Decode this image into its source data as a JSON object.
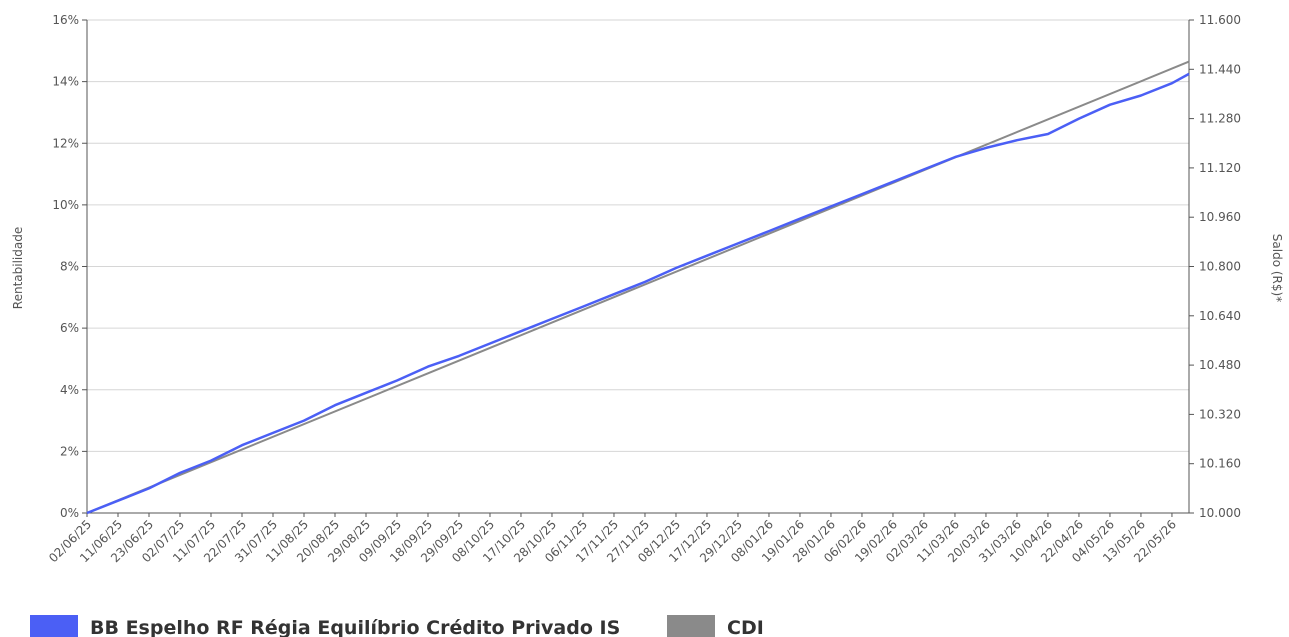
{
  "chart_data": {
    "type": "line",
    "y_left_label": "Rentabilidade",
    "y_right_label": "Saldo (R$)*",
    "y_left_ticks": [
      "0%",
      "2%",
      "4%",
      "6%",
      "8%",
      "10%",
      "12%",
      "14%",
      "16%"
    ],
    "y_right_ticks": [
      "10.000",
      "10.160",
      "10.320",
      "10.480",
      "10.640",
      "10.800",
      "10.960",
      "11.120",
      "11.280",
      "11.440",
      "11.600"
    ],
    "ylim_left": [
      0,
      16
    ],
    "ylim_right": [
      10000,
      11600
    ],
    "x_ticks": [
      "02/06/25",
      "11/06/25",
      "23/06/25",
      "02/07/25",
      "11/07/25",
      "22/07/25",
      "31/07/25",
      "11/08/25",
      "20/08/25",
      "29/08/25",
      "09/09/25",
      "18/09/25",
      "29/09/25",
      "08/10/25",
      "17/10/25",
      "28/10/25",
      "06/11/25",
      "17/11/25",
      "27/11/25",
      "08/12/25",
      "17/12/25",
      "29/12/25",
      "08/01/26",
      "19/01/26",
      "28/01/26",
      "06/02/26",
      "19/02/26",
      "02/03/26",
      "11/03/26",
      "20/03/26",
      "31/03/26",
      "10/04/26",
      "22/04/26",
      "04/05/26",
      "13/05/26",
      "22/05/26"
    ],
    "grid": true,
    "legend_position": "bottom-left",
    "series": [
      {
        "name": "BB Espelho RF Régia Equilíbrio Crédito Privado IS",
        "color": "#4b5ff5",
        "x": [
          "02/06/25",
          "11/06/25",
          "23/06/25",
          "02/07/25",
          "11/07/25",
          "22/07/25",
          "31/07/25",
          "11/08/25",
          "20/08/25",
          "29/08/25",
          "09/09/25",
          "18/09/25",
          "29/09/25",
          "08/10/25",
          "17/10/25",
          "28/10/25",
          "06/11/25",
          "17/11/25",
          "27/11/25",
          "08/12/25",
          "17/12/25",
          "29/12/25",
          "08/01/26",
          "19/01/26",
          "28/01/26",
          "06/02/26",
          "19/02/26",
          "02/03/26",
          "11/03/26",
          "20/03/26",
          "31/03/26",
          "10/04/26",
          "22/04/26",
          "04/05/26",
          "13/05/26",
          "22/05/26",
          "29/05/26"
        ],
        "y": [
          0.0,
          0.4,
          0.8,
          1.3,
          1.7,
          2.2,
          2.6,
          3.0,
          3.5,
          3.9,
          4.3,
          4.75,
          5.1,
          5.5,
          5.9,
          6.3,
          6.7,
          7.1,
          7.5,
          7.95,
          8.35,
          8.75,
          9.15,
          9.55,
          9.95,
          10.35,
          10.75,
          11.15,
          11.55,
          11.85,
          12.1,
          12.3,
          12.8,
          13.25,
          13.55,
          13.95,
          14.25
        ]
      },
      {
        "name": "CDI",
        "color": "#8a8a8a",
        "x": [
          "02/06/25",
          "29/05/26"
        ],
        "y": [
          0.0,
          14.65
        ]
      }
    ]
  }
}
